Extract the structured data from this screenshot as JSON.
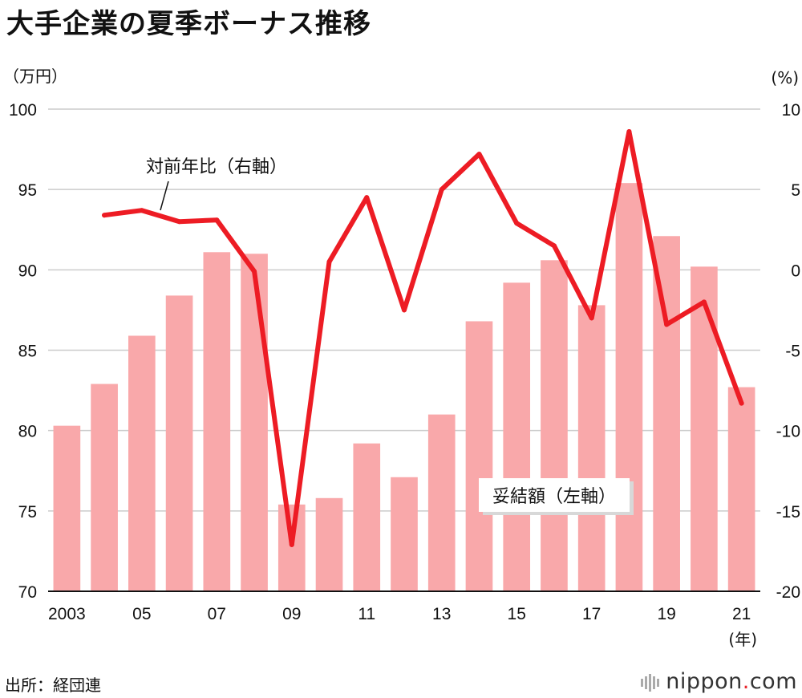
{
  "title": "大手企業の夏季ボーナス推移",
  "source": "出所：経団連",
  "logo": {
    "name": "nippon",
    "dot": ".",
    "tld": "com"
  },
  "colors": {
    "bar": "#f9a8aa",
    "line": "#ed1c24",
    "grid": "#cccccc"
  },
  "chart_data": {
    "type": "bar+line",
    "title": "大手企業の夏季ボーナス推移",
    "left_axis": {
      "unit": "（万円）",
      "range": [
        70,
        100
      ],
      "ticks": [
        "70",
        "75",
        "80",
        "85",
        "90",
        "95",
        "100"
      ]
    },
    "right_axis": {
      "unit": "(%)",
      "range": [
        -20,
        10
      ],
      "ticks": [
        "-20",
        "-15",
        "-10",
        "-5",
        "0",
        "5",
        "10"
      ]
    },
    "x_axis": {
      "unit": "(年)",
      "tick_labels": [
        "2003",
        "05",
        "07",
        "09",
        "11",
        "13",
        "15",
        "17",
        "19",
        "21"
      ]
    },
    "years": [
      2003,
      2004,
      2005,
      2006,
      2007,
      2008,
      2009,
      2010,
      2011,
      2012,
      2013,
      2014,
      2015,
      2016,
      2017,
      2018,
      2019,
      2020,
      2021
    ],
    "series": [
      {
        "name": "妥結額（左軸）",
        "type": "bar",
        "axis": "left",
        "values": [
          80.3,
          82.9,
          85.9,
          88.4,
          91.1,
          91.0,
          75.4,
          75.8,
          79.2,
          77.1,
          81.0,
          86.8,
          89.2,
          90.6,
          87.8,
          95.4,
          92.1,
          90.2,
          82.7
        ]
      },
      {
        "name": "対前年比（右軸）",
        "type": "line",
        "axis": "right",
        "values": [
          null,
          3.4,
          3.7,
          3.0,
          3.1,
          -0.1,
          -17.1,
          0.5,
          4.5,
          -2.5,
          5.0,
          7.2,
          2.9,
          1.5,
          -3.0,
          8.6,
          -3.4,
          -2.0,
          -8.3
        ]
      }
    ],
    "annotations": {
      "bar_label": "妥結額（左軸）",
      "line_label": "対前年比（右軸）"
    }
  }
}
